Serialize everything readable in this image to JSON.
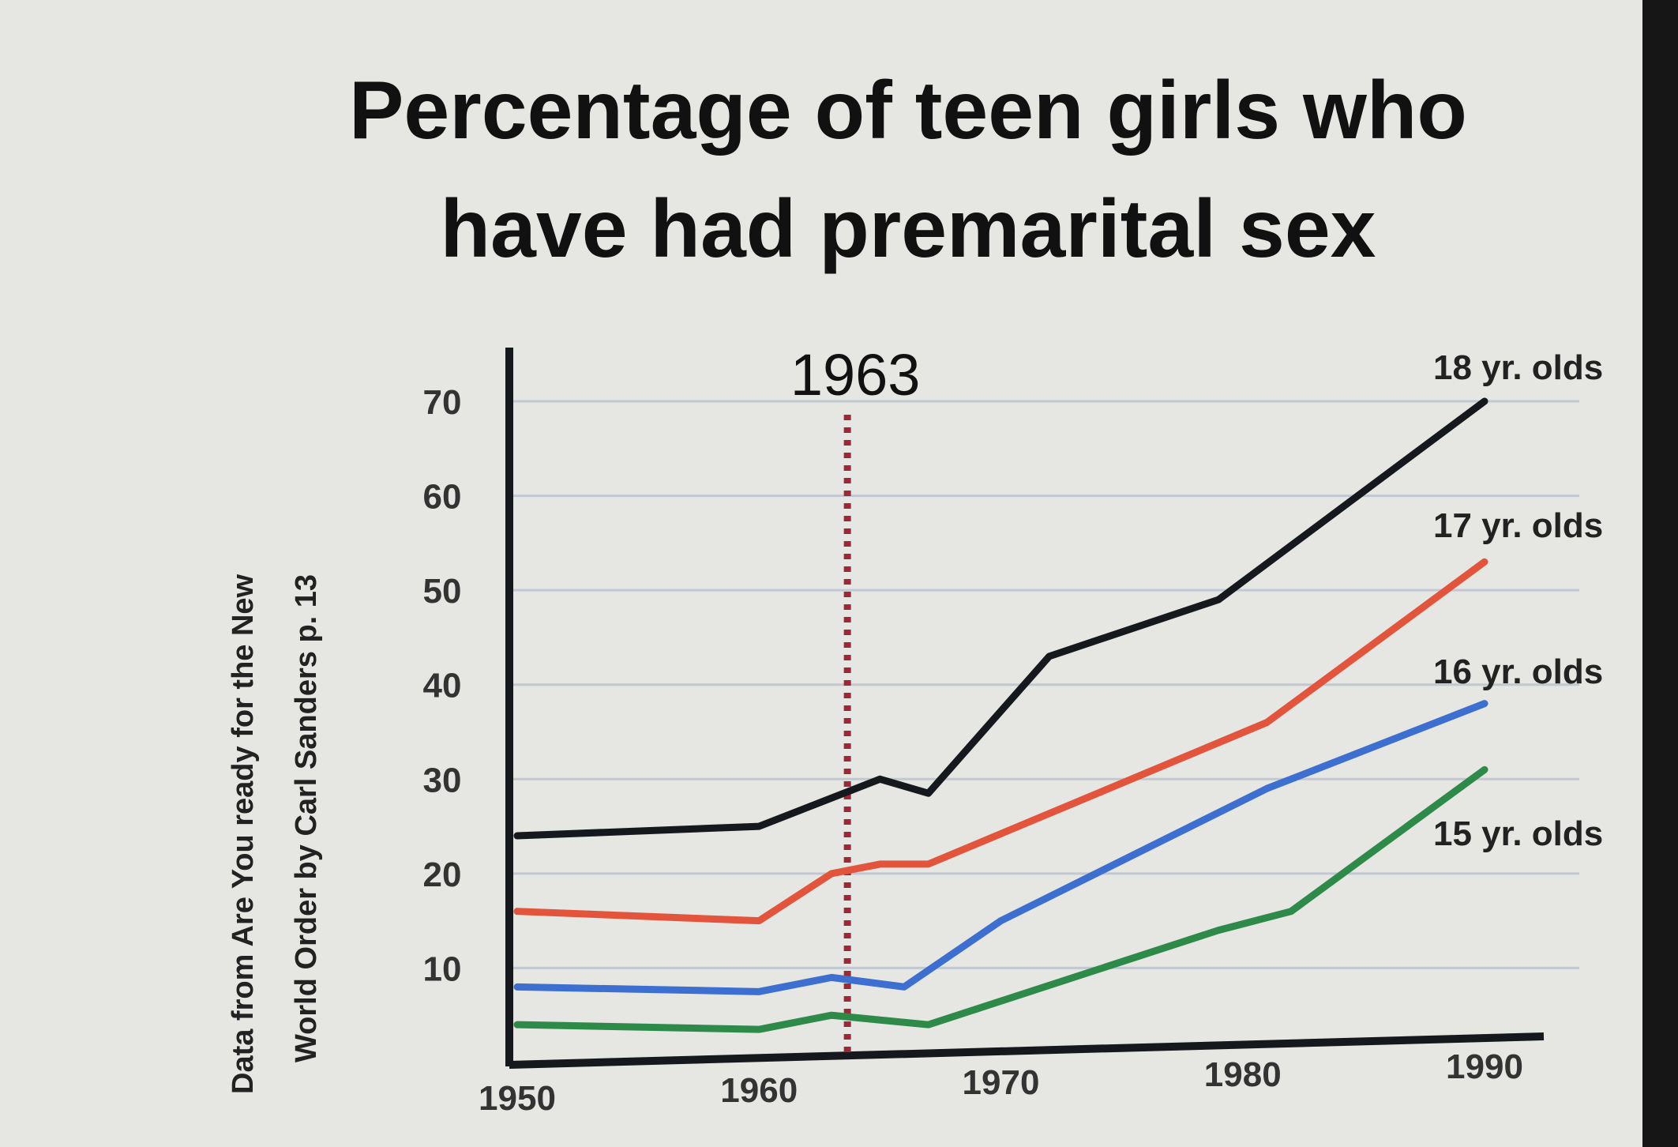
{
  "chart_data": {
    "type": "line",
    "title": "Percentage of teen girls who have had premarital sex",
    "title_lines": [
      "Percentage of teen girls who",
      "have had premarital sex"
    ],
    "source_note_lines": [
      "Data from Are You ready for the New",
      "World Order by Carl Sanders p. 13"
    ],
    "annotation": {
      "label": "1963",
      "x": 1963,
      "style": "dotted",
      "color": "#9b2a35"
    },
    "xlim": [
      1950,
      1990
    ],
    "ylim": [
      0,
      70
    ],
    "x_ticks": [
      "1950",
      "1960",
      "1970",
      "1980",
      "1990"
    ],
    "y_ticks": [
      "10",
      "20",
      "30",
      "40",
      "50",
      "60",
      "70"
    ],
    "grid": "horizontal",
    "xlabel": "",
    "ylabel": "",
    "series": [
      {
        "name": "18 yr. olds",
        "color": "#15181c",
        "points": [
          [
            1950,
            24
          ],
          [
            1960,
            25
          ],
          [
            1963,
            28
          ],
          [
            1965,
            30
          ],
          [
            1967,
            28.5
          ],
          [
            1972,
            43
          ],
          [
            1979,
            49
          ],
          [
            1990,
            70
          ]
        ]
      },
      {
        "name": "17 yr. olds",
        "color": "#e2553c",
        "points": [
          [
            1950,
            16
          ],
          [
            1960,
            15
          ],
          [
            1963,
            20
          ],
          [
            1965,
            21
          ],
          [
            1967,
            21
          ],
          [
            1981,
            36
          ],
          [
            1990,
            53
          ]
        ]
      },
      {
        "name": "16 yr. olds",
        "color": "#3c6fd0",
        "points": [
          [
            1950,
            8
          ],
          [
            1960,
            7.5
          ],
          [
            1963,
            9
          ],
          [
            1966,
            8
          ],
          [
            1970,
            15
          ],
          [
            1981,
            29
          ],
          [
            1990,
            38
          ]
        ]
      },
      {
        "name": "15 yr. olds",
        "color": "#2e8a48",
        "points": [
          [
            1950,
            4
          ],
          [
            1960,
            3.5
          ],
          [
            1963,
            5
          ],
          [
            1967,
            4
          ],
          [
            1979,
            14
          ],
          [
            1982,
            16
          ],
          [
            1990,
            31
          ]
        ]
      }
    ]
  }
}
